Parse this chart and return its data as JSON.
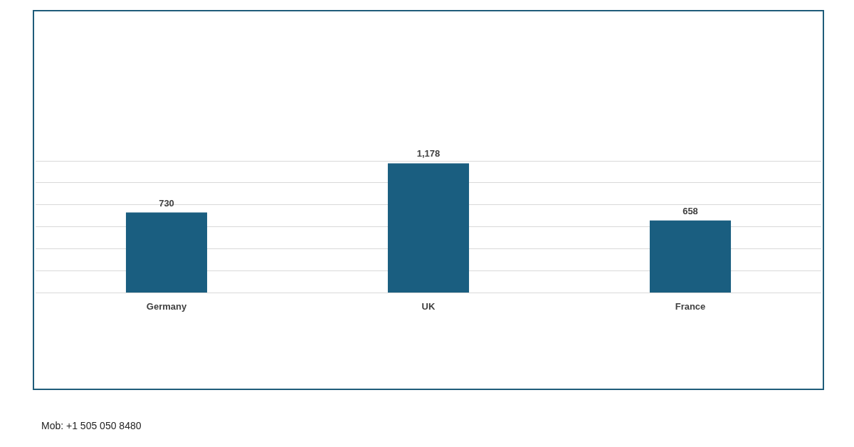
{
  "chart_data": {
    "type": "bar",
    "categories": [
      "Germany",
      "UK",
      "France"
    ],
    "values": [
      730,
      1178,
      658
    ],
    "value_labels": [
      "730",
      "1,178",
      "658"
    ],
    "color": "#1a5e80",
    "tick_labels": "x",
    "grid": "y",
    "legend": false,
    "annotations": [
      "Mob: +1 505 050 8480"
    ]
  }
}
